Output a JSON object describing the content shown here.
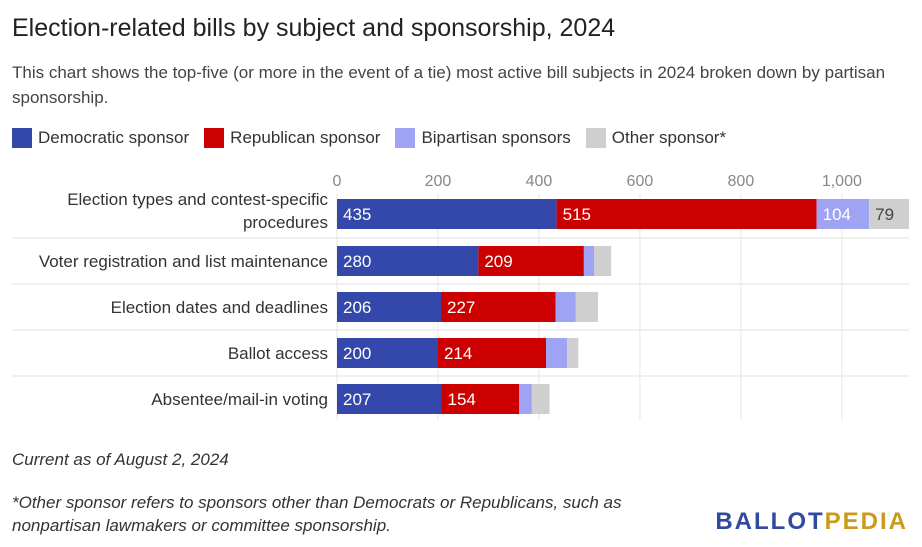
{
  "title": "Election-related bills by subject and sponsorship, 2024",
  "subtitle": "This chart shows the top-five (or more in the event of a tie) most active bill subjects in 2024 broken down by partisan sponsorship.",
  "footnote_date": "Current as of August 2, 2024",
  "footnote": "*Other sponsor refers to sponsors other than Democrats or Republicans, such as nonpartisan lawmakers or committee sponsorship.",
  "logo": {
    "part1": "BALLOT",
    "part2": "PEDIA"
  },
  "colors": {
    "democratic": "#3447aa",
    "republican": "#cc0000",
    "bipartisan": "#9fa3f3",
    "other": "#cfcfcf"
  },
  "chart_data": {
    "type": "bar",
    "orientation": "horizontal",
    "stacked": true,
    "categories": [
      "Election types and contest-specific procedures",
      "Voter registration and list maintenance",
      "Election dates and deadlines",
      "Ballot access",
      "Absentee/mail-in voting"
    ],
    "series": [
      {
        "name": "Democratic sponsor",
        "color": "#3447aa",
        "values": [
          435,
          280,
          206,
          200,
          207
        ]
      },
      {
        "name": "Republican sponsor",
        "color": "#cc0000",
        "values": [
          515,
          209,
          227,
          214,
          154
        ]
      },
      {
        "name": "Bipartisan sponsors",
        "color": "#9fa3f3",
        "values": [
          104,
          20,
          40,
          42,
          25
        ]
      },
      {
        "name": "Other sponsor*",
        "color": "#cfcfcf",
        "values": [
          79,
          34,
          44,
          22,
          35
        ]
      }
    ],
    "visible_labels": [
      [
        true,
        true,
        true,
        true
      ],
      [
        true,
        true,
        false,
        false
      ],
      [
        true,
        true,
        false,
        false
      ],
      [
        true,
        true,
        false,
        false
      ],
      [
        true,
        true,
        false,
        false
      ]
    ],
    "x_ticks": [
      "0",
      "200",
      "400",
      "600",
      "800",
      "1,000"
    ],
    "x_tick_values": [
      0,
      200,
      400,
      600,
      800,
      1000
    ],
    "xlim": [
      0,
      1133
    ],
    "grid": true,
    "legend_position": "top"
  }
}
